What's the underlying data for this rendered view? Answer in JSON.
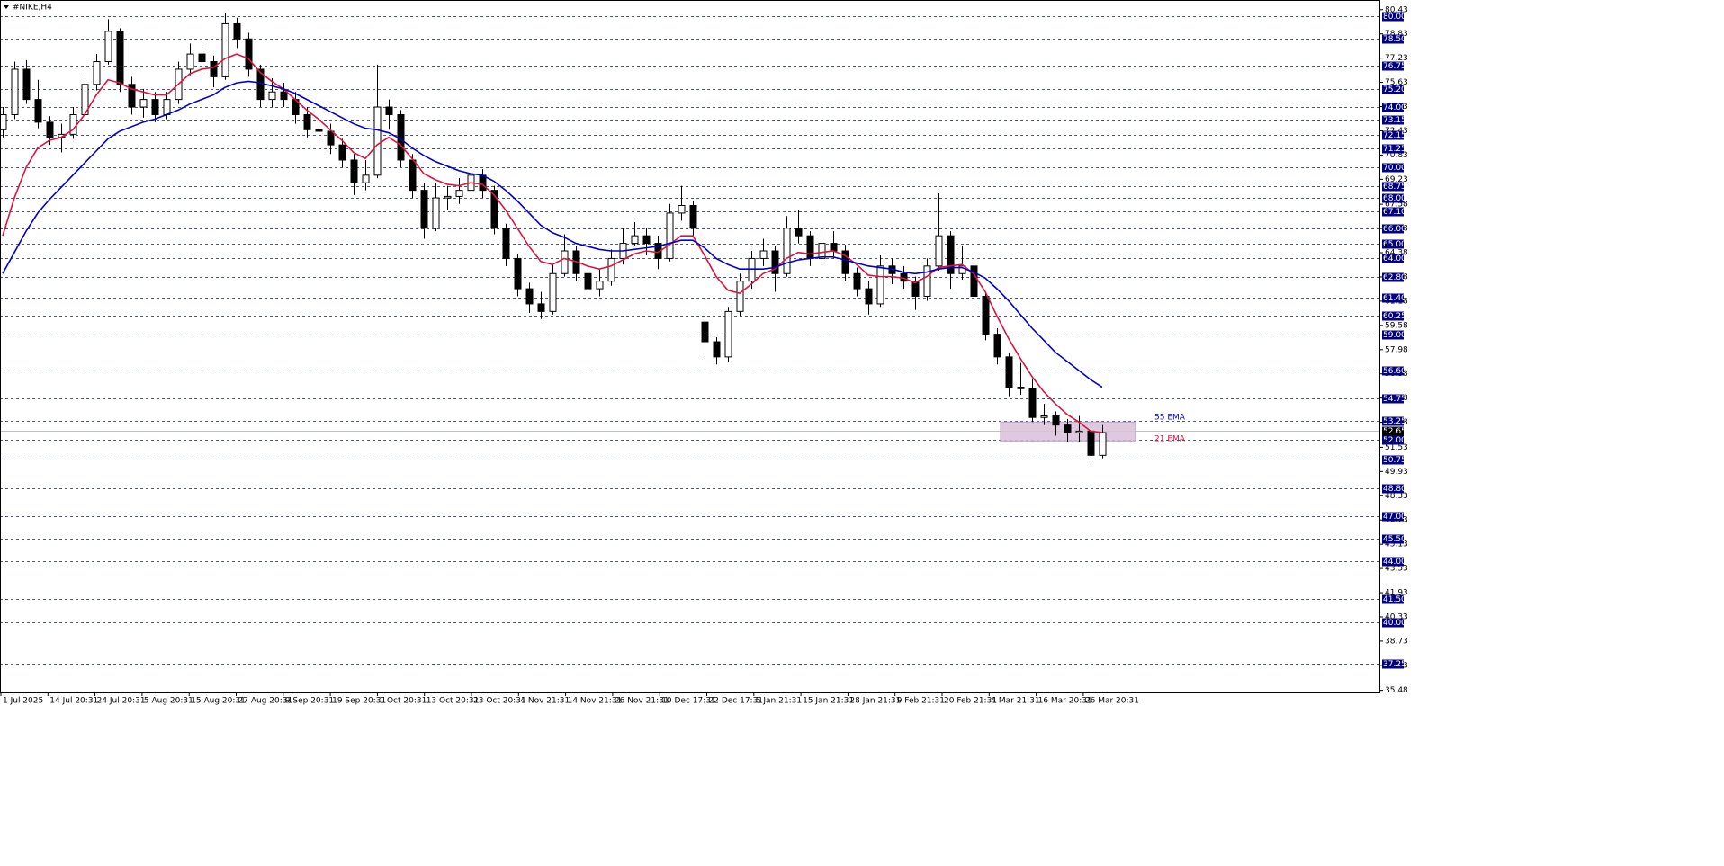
{
  "chart_data": {
    "type": "candlestick",
    "title": "#NIKE,H4",
    "ylim": [
      35.34,
      81.07
    ],
    "yticks": [
      80.43,
      78.83,
      77.23,
      75.63,
      74.03,
      72.43,
      70.83,
      69.23,
      67.58,
      65.98,
      64.38,
      62.78,
      61.18,
      59.58,
      57.98,
      56.38,
      54.78,
      53.18,
      51.53,
      49.93,
      48.33,
      46.73,
      45.13,
      43.53,
      41.93,
      40.33,
      38.73,
      37.13,
      35.48
    ],
    "levels": [
      {
        "value": 80,
        "label": "80.00"
      },
      {
        "value": 78.5,
        "label": "78.50"
      },
      {
        "value": 76.75,
        "label": "76.75"
      },
      {
        "value": 75.2,
        "label": "75.20"
      },
      {
        "value": 74,
        "label": "74.00"
      },
      {
        "value": 73.15,
        "label": "73.15"
      },
      {
        "value": 72.15,
        "label": "72.15"
      },
      {
        "value": 71.25,
        "label": "71.25"
      },
      {
        "value": 70,
        "label": "70.00"
      },
      {
        "value": 68.75,
        "label": "68.75"
      },
      {
        "value": 68,
        "label": "68.00"
      },
      {
        "value": 67.1,
        "label": "67.10"
      },
      {
        "value": 66,
        "label": "66.00"
      },
      {
        "value": 65,
        "label": "65.00"
      },
      {
        "value": 64,
        "label": "64.00"
      },
      {
        "value": 62.8,
        "label": "62.80"
      },
      {
        "value": 61.4,
        "label": "61.40"
      },
      {
        "value": 60.25,
        "label": "60.25"
      },
      {
        "value": 59,
        "label": "59.00"
      },
      {
        "value": 56.6,
        "label": "56.60"
      },
      {
        "value": 54.75,
        "label": "54.75"
      },
      {
        "value": 53.25,
        "label": "53.25"
      },
      {
        "value": 52,
        "label": "52.00"
      },
      {
        "value": 50.75,
        "label": "50.75"
      },
      {
        "value": 48.8,
        "label": "48.80"
      },
      {
        "value": 47,
        "label": "47.00"
      },
      {
        "value": 45.5,
        "label": "45.50"
      },
      {
        "value": 44,
        "label": "44.00"
      },
      {
        "value": 41.5,
        "label": "41.50"
      },
      {
        "value": 40,
        "label": "40.00"
      },
      {
        "value": 37.25,
        "label": "37.25"
      }
    ],
    "current_price": 52.65,
    "xticklabels": [
      "1 Jul 2025",
      "14 Jul 20:31",
      "24 Jul 20:31",
      "5 Aug 20:31",
      "15 Aug 20:31",
      "27 Aug 20:31",
      "9 Sep 20:31",
      "19 Sep 20:31",
      "1 Oct 20:31",
      "13 Oct 20:31",
      "23 Oct 20:31",
      "4 Nov 21:31",
      "14 Nov 21:31",
      "26 Nov 21:31",
      "10 Dec 17:31",
      "22 Dec 17:31",
      "5 Jan 21:31",
      "15 Jan 21:31",
      "28 Jan 21:31",
      "9 Feb 21:31",
      "20 Feb 21:31",
      "4 Mar 21:31",
      "16 Mar 20:31",
      "26 Mar 20:31"
    ],
    "candles": [
      [
        72.5,
        74,
        72,
        73.5
      ],
      [
        73.5,
        77,
        73.2,
        76.5
      ],
      [
        76.5,
        77.1,
        74.2,
        74.5
      ],
      [
        74.5,
        75.8,
        72.6,
        73
      ],
      [
        73,
        73.4,
        71.5,
        72
      ],
      [
        72,
        72.9,
        71,
        72.2
      ],
      [
        72.2,
        74,
        71.9,
        73.5
      ],
      [
        73.5,
        76,
        73.2,
        75.5
      ],
      [
        75.5,
        77.5,
        75.1,
        77
      ],
      [
        77,
        79.8,
        76.8,
        79
      ],
      [
        79,
        79.2,
        75,
        75.5
      ],
      [
        75.5,
        76,
        73.5,
        74
      ],
      [
        74,
        75.2,
        73.3,
        74.5
      ],
      [
        74.5,
        75,
        73,
        73.5
      ],
      [
        73.5,
        75,
        73.2,
        74.5
      ],
      [
        74.5,
        77,
        74.2,
        76.5
      ],
      [
        76.5,
        78.2,
        76.1,
        77.5
      ],
      [
        77.5,
        78,
        76.3,
        77
      ],
      [
        77,
        77.4,
        75.3,
        76
      ],
      [
        76,
        80.2,
        75.8,
        79.5
      ],
      [
        79.5,
        79.9,
        77.9,
        78.5
      ],
      [
        78.5,
        78.9,
        76,
        76.5
      ],
      [
        76.5,
        76.8,
        74,
        74.5
      ],
      [
        74.5,
        75.9,
        74,
        75
      ],
      [
        75,
        75.6,
        74,
        74.5
      ],
      [
        74.5,
        75,
        72.9,
        73.5
      ],
      [
        73.5,
        74,
        72,
        72.5
      ],
      [
        72.5,
        73.2,
        71.8,
        72.4
      ],
      [
        72.4,
        72.9,
        70.9,
        71.5
      ],
      [
        71.5,
        71.9,
        70,
        70.5
      ],
      [
        70.5,
        70.9,
        68.2,
        69
      ],
      [
        69,
        70.5,
        68.5,
        69.5
      ],
      [
        69.5,
        76.8,
        69.3,
        74
      ],
      [
        74,
        74.5,
        72.5,
        73.5
      ],
      [
        73.5,
        73.8,
        70,
        70.5
      ],
      [
        70.5,
        70.9,
        68,
        68.5
      ],
      [
        68.5,
        69,
        65.3,
        66
      ],
      [
        66,
        69,
        65.8,
        68
      ],
      [
        68,
        68.8,
        67.2,
        68.1
      ],
      [
        68.1,
        69.3,
        67.6,
        68.5
      ],
      [
        68.5,
        70.2,
        68.2,
        69.5
      ],
      [
        69.5,
        69.9,
        68,
        68.5
      ],
      [
        68.5,
        68.8,
        65.6,
        66
      ],
      [
        66,
        66.3,
        63.5,
        64
      ],
      [
        64,
        64.3,
        61.5,
        62
      ],
      [
        62,
        62.4,
        60.4,
        61
      ],
      [
        61,
        61.8,
        60,
        60.5
      ],
      [
        60.5,
        63.6,
        60.3,
        63
      ],
      [
        63,
        65.6,
        62.8,
        64.5
      ],
      [
        64.5,
        64.8,
        62.5,
        63
      ],
      [
        63,
        63.4,
        61.5,
        62
      ],
      [
        62,
        63.3,
        61.5,
        62.5
      ],
      [
        62.5,
        64.6,
        62.2,
        64
      ],
      [
        64,
        66,
        63.6,
        65
      ],
      [
        65,
        66.4,
        64.8,
        65.5
      ],
      [
        65.5,
        66,
        64.2,
        65
      ],
      [
        65,
        65.5,
        63.3,
        64
      ],
      [
        64,
        67.6,
        63.8,
        67
      ],
      [
        67,
        68.8,
        66.5,
        67.5
      ],
      [
        67.5,
        67.8,
        65.5,
        66
      ],
      [
        59.8,
        60.2,
        57.5,
        58.5
      ],
      [
        58.5,
        58.8,
        57,
        57.5
      ],
      [
        57.5,
        60.8,
        57.2,
        60.5
      ],
      [
        60.5,
        63,
        60.2,
        62.5
      ],
      [
        62.5,
        64.5,
        62,
        64
      ],
      [
        64,
        65.3,
        63.5,
        64.5
      ],
      [
        64.5,
        64.8,
        61.8,
        63
      ],
      [
        63,
        66.8,
        62.8,
        66
      ],
      [
        66,
        67.2,
        65,
        65.5
      ],
      [
        65.5,
        65.8,
        63.5,
        64
      ],
      [
        64,
        66,
        63.6,
        65
      ],
      [
        65,
        65.8,
        64,
        64.5
      ],
      [
        64.5,
        64.9,
        62.5,
        63
      ],
      [
        63,
        63.4,
        61.5,
        62
      ],
      [
        62,
        62.5,
        60.3,
        61
      ],
      [
        61,
        64.2,
        60.8,
        63.5
      ],
      [
        63.5,
        64,
        62.3,
        63
      ],
      [
        63,
        63.5,
        62,
        62.5
      ],
      [
        62.5,
        62.8,
        60.6,
        61.5
      ],
      [
        61.5,
        64,
        61.2,
        63.5
      ],
      [
        63.5,
        68.3,
        63.2,
        65.5
      ],
      [
        65.5,
        65.8,
        62,
        63
      ],
      [
        63,
        64.8,
        62.6,
        63.5
      ],
      [
        63.5,
        63.8,
        61,
        61.5
      ],
      [
        61.5,
        61.8,
        58.6,
        59
      ],
      [
        59,
        59.4,
        57,
        57.5
      ],
      [
        57.5,
        57.8,
        54.9,
        55.5
      ],
      [
        55.5,
        57.1,
        55,
        55.4
      ],
      [
        55.4,
        56,
        53.2,
        53.5
      ],
      [
        53.5,
        54.4,
        53,
        53.6
      ],
      [
        53.6,
        53.9,
        52.3,
        53
      ],
      [
        53,
        53.4,
        51.9,
        52.5
      ],
      [
        52.5,
        53.6,
        51.9,
        52.6
      ],
      [
        52.6,
        52.8,
        50.6,
        51
      ],
      [
        51,
        53,
        50.8,
        52.5
      ]
    ],
    "series": [
      {
        "name": "21 EMA",
        "color": "#dc143c",
        "values": [
          65.5,
          68,
          70,
          71.3,
          71.8,
          72,
          72.5,
          73.5,
          74.8,
          75.8,
          75.6,
          75.2,
          75,
          74.8,
          74.8,
          75.5,
          76.2,
          76.5,
          76.6,
          77.2,
          77.5,
          77.2,
          76.3,
          75.7,
          75.2,
          74.5,
          73.8,
          73.2,
          72.5,
          71.8,
          71,
          70.6,
          71.5,
          72,
          71.5,
          70.6,
          69.6,
          69.2,
          68.9,
          68.8,
          69,
          68.9,
          68.2,
          67.2,
          66,
          64.8,
          63.8,
          63.6,
          64,
          63.8,
          63.5,
          63.3,
          63.5,
          63.9,
          64.3,
          64.5,
          64.4,
          64.9,
          65.5,
          65.5,
          64.2,
          62.8,
          61.9,
          61.7,
          62.3,
          63,
          63.3,
          64,
          64.4,
          64.3,
          64.4,
          64.5,
          64.2,
          63.6,
          62.9,
          62.8,
          62.8,
          62.7,
          62.4,
          62.8,
          63.4,
          63.5,
          63.6,
          63,
          61.8,
          60.2,
          58.7,
          57.4,
          56.2,
          55.2,
          54.4,
          53.7,
          53.2,
          52.6,
          52.5
        ]
      },
      {
        "name": "55 EMA",
        "color": "#0000cd",
        "values": [
          63,
          64.4,
          65.8,
          67,
          67.9,
          68.7,
          69.5,
          70.3,
          71.1,
          71.9,
          72.4,
          72.7,
          73,
          73.2,
          73.5,
          73.8,
          74.2,
          74.5,
          74.8,
          75.3,
          75.6,
          75.7,
          75.6,
          75.4,
          75.2,
          74.9,
          74.5,
          74.1,
          73.7,
          73.3,
          72.9,
          72.6,
          72.5,
          72.3,
          71.9,
          71.3,
          70.8,
          70.4,
          70.1,
          69.8,
          69.6,
          69.5,
          69.1,
          68.5,
          67.8,
          67,
          66.2,
          65.7,
          65.4,
          65,
          64.8,
          64.6,
          64.5,
          64.5,
          64.6,
          64.7,
          64.8,
          65,
          65.2,
          65.2,
          64.7,
          64,
          63.6,
          63.3,
          63.3,
          63.3,
          63.4,
          63.7,
          63.9,
          64,
          64.1,
          64.1,
          63.9,
          63.7,
          63.5,
          63.4,
          63.3,
          63.1,
          63,
          63.1,
          63.3,
          63.4,
          63.4,
          63.1,
          62.7,
          62,
          61.2,
          60.3,
          59.4,
          58.6,
          57.8,
          57.2,
          56.6,
          56,
          55.5
        ]
      }
    ],
    "zone": {
      "low": 51.95,
      "high": 53.2,
      "color": "#d8bfd8"
    },
    "candle_colors": {
      "up": "#ffffff",
      "down": "#000000",
      "outline": "#000000"
    }
  }
}
